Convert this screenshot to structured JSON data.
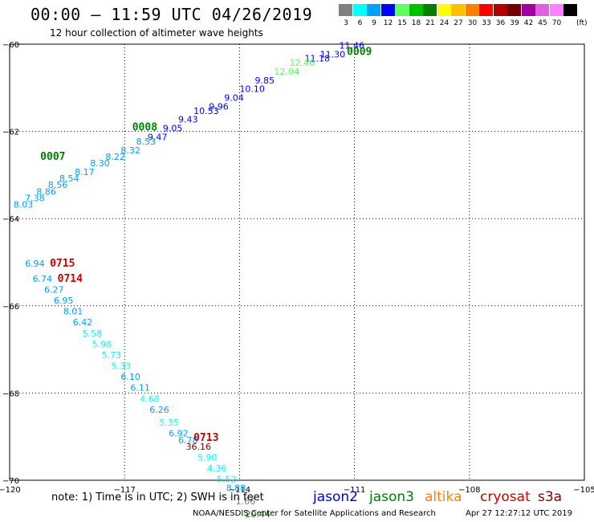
{
  "header": {
    "title": "00:00 – 11:59 UTC 04/26/2019",
    "subtitle": "12 hour collection of altimeter wave heights"
  },
  "color_scale": {
    "unit": "(ft)",
    "bins": [
      {
        "label": "3",
        "color": "#808080"
      },
      {
        "label": "6",
        "color": "#00ffff"
      },
      {
        "label": "9",
        "color": "#00a0ff"
      },
      {
        "label": "12",
        "color": "#0000ff"
      },
      {
        "label": "15",
        "color": "#60ff60"
      },
      {
        "label": "18",
        "color": "#00c000"
      },
      {
        "label": "21",
        "color": "#008000"
      },
      {
        "label": "24",
        "color": "#ffff00"
      },
      {
        "label": "27",
        "color": "#ffc000"
      },
      {
        "label": "30",
        "color": "#ff8000"
      },
      {
        "label": "33",
        "color": "#ff0000"
      },
      {
        "label": "36",
        "color": "#b00000"
      },
      {
        "label": "39",
        "color": "#700000"
      },
      {
        "label": "42",
        "color": "#a000a0"
      },
      {
        "label": "45",
        "color": "#e060e0"
      },
      {
        "label": "70",
        "color": "#ff80ff"
      },
      {
        "label": "",
        "color": "#000000"
      }
    ]
  },
  "chart_data": {
    "type": "scatter",
    "x_axis": {
      "range": [
        -120,
        -105
      ],
      "ticks": [
        -120,
        -117,
        -114,
        -111,
        -108,
        -105
      ]
    },
    "y_axis": {
      "range": [
        -70,
        -60
      ],
      "ticks": [
        -70,
        -68,
        -66,
        -64,
        -62,
        -60
      ]
    },
    "grid": true,
    "tracks": [
      {
        "id": "0009",
        "mission": "jason3",
        "id_pos": [
          -111.2,
          -60.25
        ],
        "points": [
          {
            "x": -111.4,
            "y": -60.1,
            "v": "11.46"
          },
          {
            "x": -111.9,
            "y": -60.3,
            "v": "11.30"
          },
          {
            "x": -112.3,
            "y": -60.4,
            "v": "11.18"
          },
          {
            "x": -112.7,
            "y": -60.5,
            "v": "12.46"
          },
          {
            "x": -113.1,
            "y": -60.7,
            "v": "12.04"
          },
          {
            "x": -113.6,
            "y": -60.9,
            "v": "9.85"
          },
          {
            "x": -114.0,
            "y": -61.1,
            "v": "10.10"
          },
          {
            "x": -114.4,
            "y": -61.3,
            "v": "9.04"
          },
          {
            "x": -114.8,
            "y": -61.5,
            "v": "9.96"
          },
          {
            "x": -115.2,
            "y": -61.6,
            "v": "10.53"
          },
          {
            "x": -115.6,
            "y": -61.8,
            "v": "9.43"
          },
          {
            "x": -116.0,
            "y": -62.0,
            "v": "9.05"
          }
        ]
      },
      {
        "id": "0008",
        "mission": "jason3",
        "id_pos": [
          -116.8,
          -61.98
        ],
        "points": [
          {
            "x": -116.4,
            "y": -62.2,
            "v": "9.47"
          },
          {
            "x": -116.7,
            "y": -62.3,
            "v": "8.53"
          },
          {
            "x": -117.1,
            "y": -62.5,
            "v": "8.32"
          },
          {
            "x": -117.5,
            "y": -62.65,
            "v": "8.22"
          },
          {
            "x": -117.9,
            "y": -62.8,
            "v": "8.30"
          }
        ]
      },
      {
        "id": "0007",
        "mission": "jason3",
        "id_pos": [
          -119.2,
          -62.65
        ],
        "points": [
          {
            "x": -118.3,
            "y": -63.0,
            "v": "8.17"
          },
          {
            "x": -118.7,
            "y": -63.15,
            "v": "8.54"
          },
          {
            "x": -119.0,
            "y": -63.3,
            "v": "8.56"
          },
          {
            "x": -119.3,
            "y": -63.45,
            "v": "8.86"
          },
          {
            "x": -119.6,
            "y": -63.6,
            "v": "7.38"
          },
          {
            "x": -119.9,
            "y": -63.75,
            "v": "8.03"
          }
        ]
      },
      {
        "id": "0715",
        "mission": "cryosat",
        "id_pos": [
          -118.95,
          -65.1
        ],
        "points": [
          {
            "x": -119.6,
            "y": -65.1,
            "v": "6.94"
          }
        ]
      },
      {
        "id": "0714",
        "mission": "cryosat",
        "id_pos": [
          -118.75,
          -65.45
        ],
        "points": [
          {
            "x": -119.4,
            "y": -65.45,
            "v": "6.74"
          },
          {
            "x": -119.1,
            "y": -65.7,
            "v": "6.27"
          },
          {
            "x": -118.85,
            "y": -65.95,
            "v": "6.95"
          },
          {
            "x": -118.6,
            "y": -66.2,
            "v": "8.01"
          },
          {
            "x": -118.35,
            "y": -66.45,
            "v": "6.42"
          },
          {
            "x": -118.1,
            "y": -66.7,
            "v": "5.58"
          },
          {
            "x": -117.85,
            "y": -66.95,
            "v": "5.98"
          },
          {
            "x": -117.6,
            "y": -67.2,
            "v": "5.73"
          },
          {
            "x": -117.35,
            "y": -67.45,
            "v": "5.33"
          },
          {
            "x": -117.1,
            "y": -67.7,
            "v": "6.10"
          },
          {
            "x": -116.85,
            "y": -67.95,
            "v": "6.11"
          },
          {
            "x": -116.6,
            "y": -68.2,
            "v": "4.68"
          },
          {
            "x": -116.35,
            "y": -68.45,
            "v": "6.26"
          }
        ]
      },
      {
        "id": "0713",
        "mission": "cryosat",
        "id_pos": [
          -115.2,
          -69.1
        ],
        "points": [
          {
            "x": -116.1,
            "y": -68.75,
            "v": "5.35"
          },
          {
            "x": -115.85,
            "y": -69.0,
            "v": "6.92"
          },
          {
            "x": -115.6,
            "y": -69.15,
            "v": "6.78"
          },
          {
            "x": -115.4,
            "y": -69.3,
            "v": "36.16"
          },
          {
            "x": -115.1,
            "y": -69.55,
            "v": "5.90"
          },
          {
            "x": -114.85,
            "y": -69.8,
            "v": "4.36"
          },
          {
            "x": -114.6,
            "y": -70.05,
            "v": "5.52"
          },
          {
            "x": -114.35,
            "y": -70.25,
            "v": "8.88"
          },
          {
            "x": -114.1,
            "y": -70.55,
            "v": "1.66"
          },
          {
            "x": -113.85,
            "y": -70.85,
            "v": "20.44"
          }
        ]
      }
    ]
  },
  "footer": {
    "note": "note: 1) Time is in UTC; 2) SWH is in feet",
    "legend": [
      {
        "name": "jason2",
        "color": "#0000cc"
      },
      {
        "name": "jason3",
        "color": "#008000"
      },
      {
        "name": "altika",
        "color": "#ff8000"
      },
      {
        "name": "cryosat",
        "color": "#cc0000"
      },
      {
        "name": "s3a",
        "color": "#800000"
      }
    ],
    "credit": "NOAA/NESDIS Center for Satellite Applications and Research",
    "timestamp": "Apr 27 12:27:12 UTC 2019"
  }
}
